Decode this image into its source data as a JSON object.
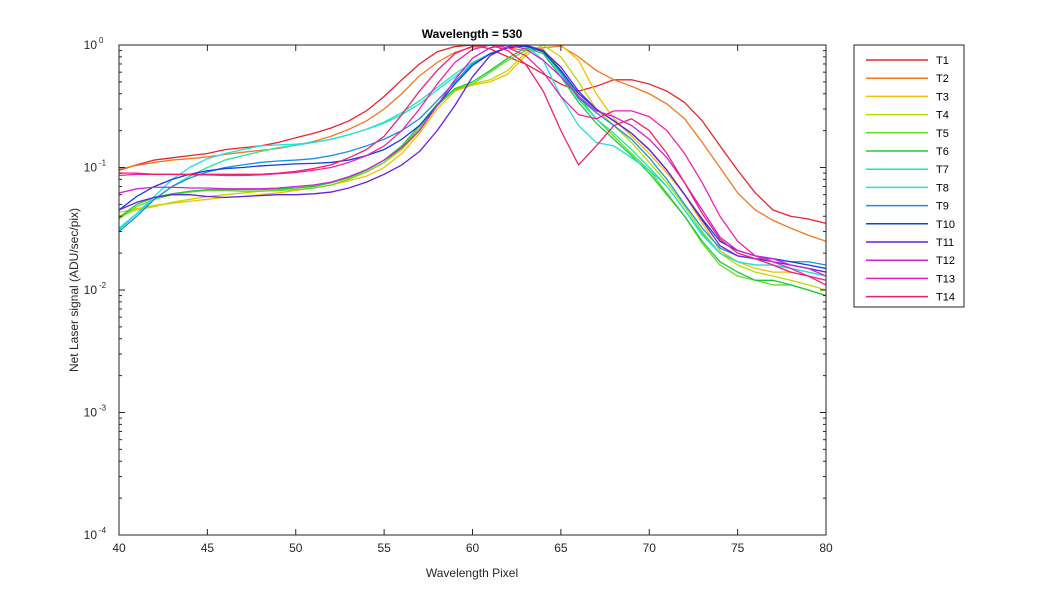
{
  "chart_data": {
    "type": "line",
    "title": "Wavelength = 530",
    "xlabel": "Wavelength Pixel",
    "ylabel": "Net Laser signal  (ADU/sec/pix)",
    "xlim": [
      40,
      80
    ],
    "ylim": [
      0.0001,
      1
    ],
    "yscale": "log",
    "grid": false,
    "legend": "outside-right",
    "x_ticks": [
      "40",
      "45",
      "50",
      "55",
      "60",
      "65",
      "70",
      "75",
      "80"
    ],
    "y_ticks": [
      {
        "base": "10",
        "exp": "-4",
        "value": 0.0001
      },
      {
        "base": "10",
        "exp": "-3",
        "value": 0.001
      },
      {
        "base": "10",
        "exp": "-2",
        "value": 0.01
      },
      {
        "base": "10",
        "exp": "-1",
        "value": 0.1
      },
      {
        "base": "10",
        "exp": "0",
        "value": 1
      }
    ],
    "x": [
      40,
      41,
      42,
      43,
      44,
      45,
      46,
      47,
      48,
      49,
      50,
      51,
      52,
      53,
      54,
      55,
      56,
      57,
      58,
      59,
      60,
      61,
      62,
      63,
      64,
      65,
      66,
      67,
      68,
      69,
      70,
      71,
      72,
      73,
      74,
      75,
      76,
      77,
      78,
      79,
      80
    ],
    "series": [
      {
        "name": "T1",
        "color": "#e6262d",
        "values": [
          0.095,
          0.105,
          0.115,
          0.12,
          0.125,
          0.13,
          0.14,
          0.145,
          0.15,
          0.16,
          0.175,
          0.19,
          0.21,
          0.24,
          0.29,
          0.38,
          0.52,
          0.7,
          0.88,
          0.97,
          1.0,
          0.93,
          0.8,
          0.7,
          0.58,
          0.48,
          0.42,
          0.46,
          0.52,
          0.52,
          0.48,
          0.42,
          0.34,
          0.24,
          0.15,
          0.095,
          0.062,
          0.045,
          0.04,
          0.038,
          0.035
        ]
      },
      {
        "name": "T2",
        "color": "#f07820",
        "values": [
          0.097,
          0.104,
          0.11,
          0.115,
          0.118,
          0.122,
          0.128,
          0.133,
          0.138,
          0.143,
          0.152,
          0.163,
          0.18,
          0.205,
          0.24,
          0.3,
          0.4,
          0.56,
          0.72,
          0.87,
          0.96,
          1.0,
          0.95,
          0.9,
          0.95,
          0.98,
          0.8,
          0.62,
          0.52,
          0.46,
          0.4,
          0.33,
          0.25,
          0.16,
          0.1,
          0.062,
          0.045,
          0.037,
          0.032,
          0.028,
          0.025
        ]
      },
      {
        "name": "T3",
        "color": "#f2c000",
        "values": [
          0.043,
          0.046,
          0.049,
          0.051,
          0.053,
          0.055,
          0.057,
          0.058,
          0.06,
          0.062,
          0.065,
          0.068,
          0.072,
          0.078,
          0.085,
          0.1,
          0.13,
          0.19,
          0.3,
          0.42,
          0.47,
          0.5,
          0.58,
          0.82,
          1.0,
          1.0,
          0.75,
          0.4,
          0.25,
          0.18,
          0.13,
          0.09,
          0.06,
          0.035,
          0.021,
          0.017,
          0.015,
          0.014,
          0.014,
          0.013,
          0.012
        ]
      },
      {
        "name": "T4",
        "color": "#b8dc00",
        "values": [
          0.04,
          0.045,
          0.048,
          0.052,
          0.055,
          0.058,
          0.06,
          0.062,
          0.064,
          0.066,
          0.068,
          0.071,
          0.075,
          0.082,
          0.092,
          0.11,
          0.14,
          0.2,
          0.32,
          0.44,
          0.48,
          0.52,
          0.62,
          0.86,
          1.0,
          0.8,
          0.5,
          0.3,
          0.22,
          0.16,
          0.11,
          0.075,
          0.048,
          0.03,
          0.02,
          0.016,
          0.014,
          0.013,
          0.012,
          0.011,
          0.01
        ]
      },
      {
        "name": "T5",
        "color": "#5fe020",
        "values": [
          0.038,
          0.048,
          0.055,
          0.06,
          0.063,
          0.065,
          0.065,
          0.064,
          0.064,
          0.065,
          0.066,
          0.068,
          0.072,
          0.08,
          0.092,
          0.11,
          0.145,
          0.21,
          0.32,
          0.43,
          0.48,
          0.6,
          0.75,
          0.9,
          0.92,
          0.62,
          0.38,
          0.25,
          0.18,
          0.13,
          0.095,
          0.062,
          0.04,
          0.024,
          0.016,
          0.013,
          0.012,
          0.011,
          0.011,
          0.01,
          0.009
        ]
      },
      {
        "name": "T6",
        "color": "#20c840",
        "values": [
          0.039,
          0.05,
          0.057,
          0.061,
          0.064,
          0.066,
          0.066,
          0.066,
          0.066,
          0.067,
          0.068,
          0.07,
          0.075,
          0.083,
          0.095,
          0.115,
          0.15,
          0.22,
          0.33,
          0.44,
          0.5,
          0.62,
          0.78,
          0.95,
          0.85,
          0.55,
          0.34,
          0.23,
          0.17,
          0.125,
          0.09,
          0.06,
          0.04,
          0.025,
          0.017,
          0.014,
          0.012,
          0.012,
          0.011,
          0.01,
          0.009
        ]
      },
      {
        "name": "T7",
        "color": "#20e8a0",
        "values": [
          0.032,
          0.042,
          0.055,
          0.07,
          0.085,
          0.1,
          0.115,
          0.125,
          0.135,
          0.145,
          0.152,
          0.16,
          0.17,
          0.185,
          0.205,
          0.235,
          0.28,
          0.35,
          0.45,
          0.58,
          0.72,
          0.85,
          0.95,
          1.0,
          0.88,
          0.58,
          0.36,
          0.25,
          0.19,
          0.14,
          0.1,
          0.07,
          0.045,
          0.029,
          0.02,
          0.017,
          0.016,
          0.016,
          0.015,
          0.014,
          0.013
        ]
      },
      {
        "name": "T8",
        "color": "#20e0e0",
        "values": [
          0.031,
          0.042,
          0.058,
          0.08,
          0.1,
          0.118,
          0.13,
          0.14,
          0.15,
          0.153,
          0.155,
          0.16,
          0.17,
          0.185,
          0.205,
          0.23,
          0.27,
          0.33,
          0.43,
          0.55,
          0.7,
          0.85,
          0.96,
          1.0,
          0.75,
          0.38,
          0.22,
          0.16,
          0.15,
          0.12,
          0.095,
          0.07,
          0.045,
          0.028,
          0.02,
          0.017,
          0.016,
          0.016,
          0.015,
          0.014,
          0.013
        ]
      },
      {
        "name": "T9",
        "color": "#1890e0",
        "values": [
          0.03,
          0.04,
          0.055,
          0.07,
          0.082,
          0.092,
          0.1,
          0.105,
          0.11,
          0.113,
          0.115,
          0.118,
          0.125,
          0.135,
          0.15,
          0.17,
          0.2,
          0.25,
          0.35,
          0.5,
          0.7,
          0.85,
          0.95,
          1.0,
          0.9,
          0.6,
          0.37,
          0.28,
          0.22,
          0.17,
          0.12,
          0.08,
          0.05,
          0.032,
          0.022,
          0.019,
          0.018,
          0.018,
          0.017,
          0.017,
          0.016
        ]
      },
      {
        "name": "T10",
        "color": "#1040e0",
        "values": [
          0.045,
          0.058,
          0.07,
          0.08,
          0.088,
          0.094,
          0.098,
          0.1,
          0.103,
          0.105,
          0.107,
          0.108,
          0.11,
          0.115,
          0.125,
          0.14,
          0.17,
          0.22,
          0.32,
          0.48,
          0.68,
          0.85,
          0.95,
          0.98,
          0.88,
          0.62,
          0.4,
          0.3,
          0.24,
          0.19,
          0.14,
          0.095,
          0.06,
          0.038,
          0.025,
          0.021,
          0.019,
          0.018,
          0.017,
          0.016,
          0.015
        ]
      },
      {
        "name": "T11",
        "color": "#6a20d8",
        "values": [
          0.045,
          0.052,
          0.057,
          0.06,
          0.06,
          0.058,
          0.057,
          0.058,
          0.059,
          0.06,
          0.06,
          0.061,
          0.063,
          0.068,
          0.076,
          0.088,
          0.105,
          0.135,
          0.2,
          0.32,
          0.55,
          0.82,
          0.97,
          1.0,
          0.9,
          0.66,
          0.42,
          0.3,
          0.24,
          0.19,
          0.14,
          0.095,
          0.06,
          0.037,
          0.023,
          0.019,
          0.018,
          0.017,
          0.016,
          0.015,
          0.014
        ]
      },
      {
        "name": "T12",
        "color": "#d020d8",
        "values": [
          0.062,
          0.067,
          0.069,
          0.069,
          0.068,
          0.068,
          0.067,
          0.067,
          0.067,
          0.068,
          0.07,
          0.072,
          0.076,
          0.084,
          0.096,
          0.115,
          0.145,
          0.2,
          0.32,
          0.52,
          0.78,
          0.95,
          1.0,
          0.93,
          0.75,
          0.55,
          0.38,
          0.29,
          0.26,
          0.22,
          0.17,
          0.12,
          0.075,
          0.045,
          0.027,
          0.021,
          0.019,
          0.018,
          0.016,
          0.015,
          0.013
        ]
      },
      {
        "name": "T13",
        "color": "#f020b0",
        "values": [
          0.086,
          0.088,
          0.088,
          0.088,
          0.087,
          0.087,
          0.086,
          0.086,
          0.087,
          0.089,
          0.091,
          0.095,
          0.1,
          0.11,
          0.125,
          0.15,
          0.2,
          0.3,
          0.48,
          0.72,
          0.92,
          1.0,
          0.95,
          0.82,
          0.6,
          0.38,
          0.27,
          0.25,
          0.29,
          0.29,
          0.26,
          0.2,
          0.13,
          0.075,
          0.04,
          0.025,
          0.019,
          0.017,
          0.015,
          0.013,
          0.012
        ]
      },
      {
        "name": "T14",
        "color": "#f02070",
        "values": [
          0.09,
          0.09,
          0.088,
          0.088,
          0.088,
          0.088,
          0.088,
          0.088,
          0.088,
          0.09,
          0.093,
          0.098,
          0.105,
          0.12,
          0.14,
          0.18,
          0.27,
          0.42,
          0.62,
          0.85,
          0.98,
          1.0,
          0.9,
          0.7,
          0.42,
          0.2,
          0.105,
          0.15,
          0.22,
          0.25,
          0.2,
          0.13,
          0.075,
          0.042,
          0.026,
          0.02,
          0.018,
          0.016,
          0.014,
          0.013,
          0.011
        ]
      }
    ]
  }
}
